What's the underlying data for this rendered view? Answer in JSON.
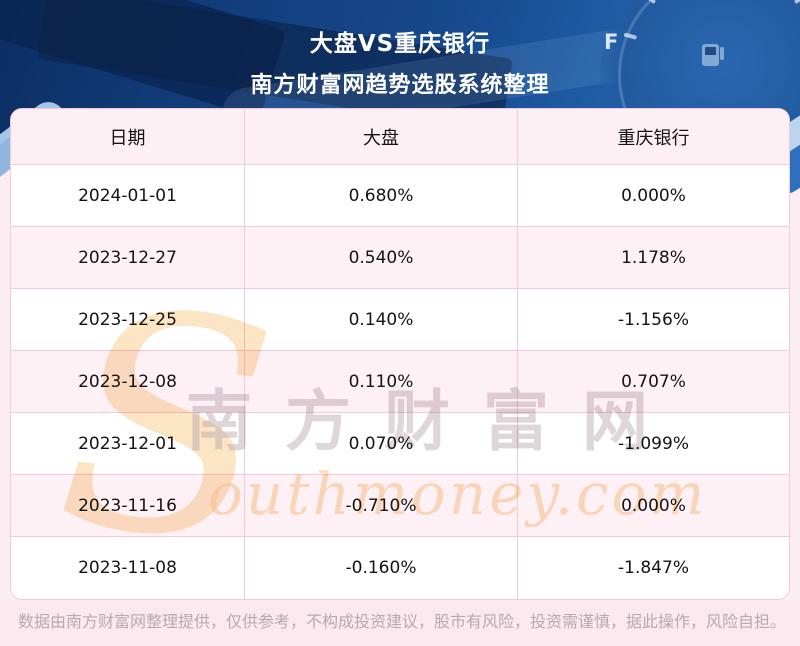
{
  "hero": {
    "title": "大盘VS重庆银行",
    "subtitle": "南方财富网趋势选股系统整理",
    "gauge_full_label": "F"
  },
  "table": {
    "columns": [
      "日期",
      "大盘",
      "重庆银行"
    ],
    "rows": [
      {
        "date": "2024-01-01",
        "market": "0.680%",
        "stock": "0.000%"
      },
      {
        "date": "2023-12-27",
        "market": "0.540%",
        "stock": "1.178%"
      },
      {
        "date": "2023-12-25",
        "market": "0.140%",
        "stock": "-1.156%"
      },
      {
        "date": "2023-12-08",
        "market": "0.110%",
        "stock": "0.707%"
      },
      {
        "date": "2023-12-01",
        "market": "0.070%",
        "stock": "-1.099%"
      },
      {
        "date": "2023-11-16",
        "market": "-0.710%",
        "stock": "0.000%"
      },
      {
        "date": "2023-11-08",
        "market": "-0.160%",
        "stock": "-1.847%"
      }
    ]
  },
  "chart_data": {
    "type": "table",
    "title": "大盘VS重庆银行",
    "subtitle": "南方财富网趋势选股系统整理",
    "columns": [
      "日期",
      "大盘",
      "重庆银行"
    ],
    "categories": [
      "2024-01-01",
      "2023-12-27",
      "2023-12-25",
      "2023-12-08",
      "2023-12-01",
      "2023-11-16",
      "2023-11-08"
    ],
    "series": [
      {
        "name": "大盘",
        "values": [
          0.68,
          0.54,
          0.14,
          0.11,
          0.07,
          -0.71,
          -0.16
        ],
        "unit": "%"
      },
      {
        "name": "重庆银行",
        "values": [
          0.0,
          1.178,
          -1.156,
          0.707,
          -1.099,
          0.0,
          -1.847
        ],
        "unit": "%"
      }
    ]
  },
  "watermark": {
    "initial": "S",
    "cn": "南方财富网",
    "en": "outhmoney.com"
  },
  "footer": {
    "disclaimer": "数据由南方财富网整理提供，仅供参考，不构成投资建议，股市有风险，投资需谨慎，据此操作，风险自担。"
  },
  "colors": {
    "hero_blue_dark": "#0c2e62",
    "hero_blue_light": "#2e6fbe",
    "table_border_pink": "#f6c9d6",
    "header_row_bg": "#fdf0f5",
    "row_alt_bg": "#fdf1f6",
    "page_bg": "#fcedf3",
    "footer_bg": "#fce9ef",
    "footer_text": "#b5aab0",
    "watermark_cn": "#b29ea8",
    "watermark_en": "#facd96",
    "text_ink": "#141414"
  }
}
